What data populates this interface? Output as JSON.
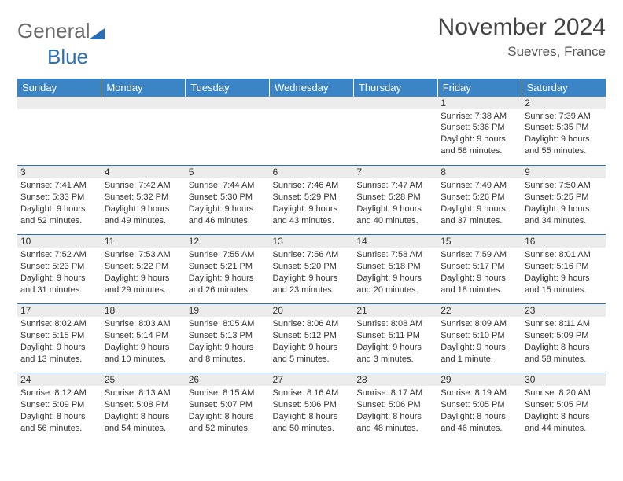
{
  "logo": {
    "word1": "General",
    "word2": "Blue"
  },
  "title": "November 2024",
  "location": "Suevres, France",
  "colors": {
    "header_bg": "#3b85c6",
    "header_text": "#ffffff",
    "daynum_bg": "#ececec",
    "border": "#2a6fb5",
    "title_color": "#444444",
    "logo_gray": "#6b6b6b",
    "logo_blue": "#2a6fb5"
  },
  "weekdays": [
    "Sunday",
    "Monday",
    "Tuesday",
    "Wednesday",
    "Thursday",
    "Friday",
    "Saturday"
  ],
  "weeks": [
    [
      null,
      null,
      null,
      null,
      null,
      {
        "n": "1",
        "sunrise": "Sunrise: 7:38 AM",
        "sunset": "Sunset: 5:36 PM",
        "day1": "Daylight: 9 hours",
        "day2": "and 58 minutes."
      },
      {
        "n": "2",
        "sunrise": "Sunrise: 7:39 AM",
        "sunset": "Sunset: 5:35 PM",
        "day1": "Daylight: 9 hours",
        "day2": "and 55 minutes."
      }
    ],
    [
      {
        "n": "3",
        "sunrise": "Sunrise: 7:41 AM",
        "sunset": "Sunset: 5:33 PM",
        "day1": "Daylight: 9 hours",
        "day2": "and 52 minutes."
      },
      {
        "n": "4",
        "sunrise": "Sunrise: 7:42 AM",
        "sunset": "Sunset: 5:32 PM",
        "day1": "Daylight: 9 hours",
        "day2": "and 49 minutes."
      },
      {
        "n": "5",
        "sunrise": "Sunrise: 7:44 AM",
        "sunset": "Sunset: 5:30 PM",
        "day1": "Daylight: 9 hours",
        "day2": "and 46 minutes."
      },
      {
        "n": "6",
        "sunrise": "Sunrise: 7:46 AM",
        "sunset": "Sunset: 5:29 PM",
        "day1": "Daylight: 9 hours",
        "day2": "and 43 minutes."
      },
      {
        "n": "7",
        "sunrise": "Sunrise: 7:47 AM",
        "sunset": "Sunset: 5:28 PM",
        "day1": "Daylight: 9 hours",
        "day2": "and 40 minutes."
      },
      {
        "n": "8",
        "sunrise": "Sunrise: 7:49 AM",
        "sunset": "Sunset: 5:26 PM",
        "day1": "Daylight: 9 hours",
        "day2": "and 37 minutes."
      },
      {
        "n": "9",
        "sunrise": "Sunrise: 7:50 AM",
        "sunset": "Sunset: 5:25 PM",
        "day1": "Daylight: 9 hours",
        "day2": "and 34 minutes."
      }
    ],
    [
      {
        "n": "10",
        "sunrise": "Sunrise: 7:52 AM",
        "sunset": "Sunset: 5:23 PM",
        "day1": "Daylight: 9 hours",
        "day2": "and 31 minutes."
      },
      {
        "n": "11",
        "sunrise": "Sunrise: 7:53 AM",
        "sunset": "Sunset: 5:22 PM",
        "day1": "Daylight: 9 hours",
        "day2": "and 29 minutes."
      },
      {
        "n": "12",
        "sunrise": "Sunrise: 7:55 AM",
        "sunset": "Sunset: 5:21 PM",
        "day1": "Daylight: 9 hours",
        "day2": "and 26 minutes."
      },
      {
        "n": "13",
        "sunrise": "Sunrise: 7:56 AM",
        "sunset": "Sunset: 5:20 PM",
        "day1": "Daylight: 9 hours",
        "day2": "and 23 minutes."
      },
      {
        "n": "14",
        "sunrise": "Sunrise: 7:58 AM",
        "sunset": "Sunset: 5:18 PM",
        "day1": "Daylight: 9 hours",
        "day2": "and 20 minutes."
      },
      {
        "n": "15",
        "sunrise": "Sunrise: 7:59 AM",
        "sunset": "Sunset: 5:17 PM",
        "day1": "Daylight: 9 hours",
        "day2": "and 18 minutes."
      },
      {
        "n": "16",
        "sunrise": "Sunrise: 8:01 AM",
        "sunset": "Sunset: 5:16 PM",
        "day1": "Daylight: 9 hours",
        "day2": "and 15 minutes."
      }
    ],
    [
      {
        "n": "17",
        "sunrise": "Sunrise: 8:02 AM",
        "sunset": "Sunset: 5:15 PM",
        "day1": "Daylight: 9 hours",
        "day2": "and 13 minutes."
      },
      {
        "n": "18",
        "sunrise": "Sunrise: 8:03 AM",
        "sunset": "Sunset: 5:14 PM",
        "day1": "Daylight: 9 hours",
        "day2": "and 10 minutes."
      },
      {
        "n": "19",
        "sunrise": "Sunrise: 8:05 AM",
        "sunset": "Sunset: 5:13 PM",
        "day1": "Daylight: 9 hours",
        "day2": "and 8 minutes."
      },
      {
        "n": "20",
        "sunrise": "Sunrise: 8:06 AM",
        "sunset": "Sunset: 5:12 PM",
        "day1": "Daylight: 9 hours",
        "day2": "and 5 minutes."
      },
      {
        "n": "21",
        "sunrise": "Sunrise: 8:08 AM",
        "sunset": "Sunset: 5:11 PM",
        "day1": "Daylight: 9 hours",
        "day2": "and 3 minutes."
      },
      {
        "n": "22",
        "sunrise": "Sunrise: 8:09 AM",
        "sunset": "Sunset: 5:10 PM",
        "day1": "Daylight: 9 hours",
        "day2": "and 1 minute."
      },
      {
        "n": "23",
        "sunrise": "Sunrise: 8:11 AM",
        "sunset": "Sunset: 5:09 PM",
        "day1": "Daylight: 8 hours",
        "day2": "and 58 minutes."
      }
    ],
    [
      {
        "n": "24",
        "sunrise": "Sunrise: 8:12 AM",
        "sunset": "Sunset: 5:09 PM",
        "day1": "Daylight: 8 hours",
        "day2": "and 56 minutes."
      },
      {
        "n": "25",
        "sunrise": "Sunrise: 8:13 AM",
        "sunset": "Sunset: 5:08 PM",
        "day1": "Daylight: 8 hours",
        "day2": "and 54 minutes."
      },
      {
        "n": "26",
        "sunrise": "Sunrise: 8:15 AM",
        "sunset": "Sunset: 5:07 PM",
        "day1": "Daylight: 8 hours",
        "day2": "and 52 minutes."
      },
      {
        "n": "27",
        "sunrise": "Sunrise: 8:16 AM",
        "sunset": "Sunset: 5:06 PM",
        "day1": "Daylight: 8 hours",
        "day2": "and 50 minutes."
      },
      {
        "n": "28",
        "sunrise": "Sunrise: 8:17 AM",
        "sunset": "Sunset: 5:06 PM",
        "day1": "Daylight: 8 hours",
        "day2": "and 48 minutes."
      },
      {
        "n": "29",
        "sunrise": "Sunrise: 8:19 AM",
        "sunset": "Sunset: 5:05 PM",
        "day1": "Daylight: 8 hours",
        "day2": "and 46 minutes."
      },
      {
        "n": "30",
        "sunrise": "Sunrise: 8:20 AM",
        "sunset": "Sunset: 5:05 PM",
        "day1": "Daylight: 8 hours",
        "day2": "and 44 minutes."
      }
    ]
  ]
}
